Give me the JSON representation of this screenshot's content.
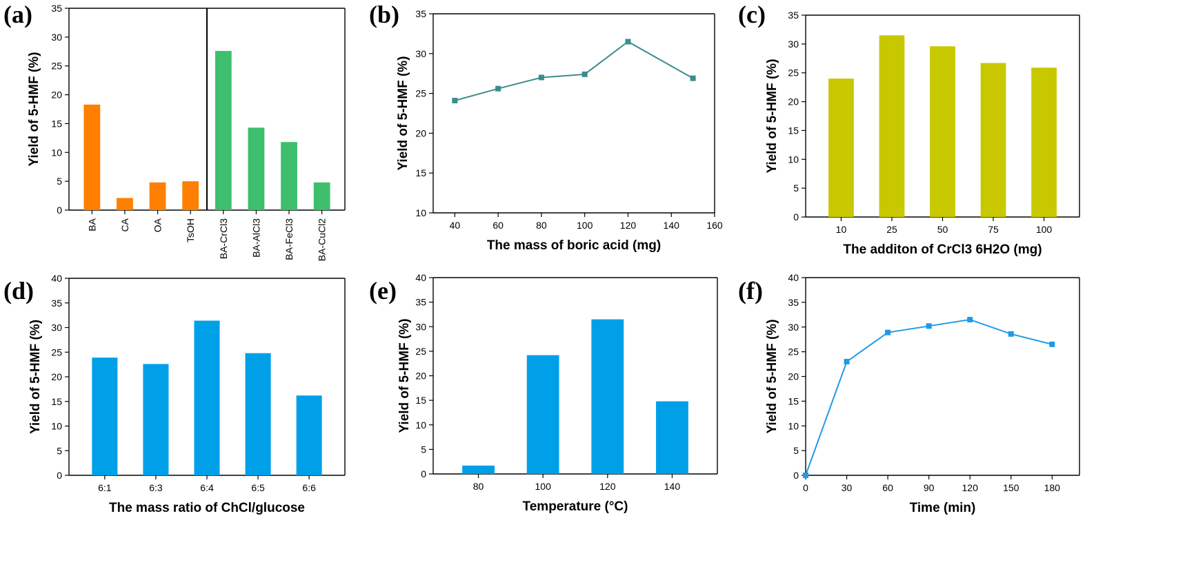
{
  "chart_data": [
    {
      "panel": "(a)",
      "type": "bar",
      "categories": [
        "BA",
        "CA",
        "OA",
        "TsOH",
        "BA-CrCl3",
        "BA-AlCl3",
        "BA-FeCl3",
        "BA-CuCl2"
      ],
      "values": [
        18.3,
        2.1,
        4.8,
        5.0,
        27.6,
        14.3,
        11.8,
        4.8
      ],
      "bar_colors": [
        "#ff7f00",
        "#ff7f00",
        "#ff7f00",
        "#ff7f00",
        "#3dbf6e",
        "#3dbf6e",
        "#3dbf6e",
        "#3dbf6e"
      ],
      "divider_after_category": "TsOH",
      "ylabel": "Yield of 5-HMF (%)",
      "xlabel": "",
      "ylim": [
        0,
        35
      ],
      "yticks": [
        0,
        5,
        10,
        15,
        20,
        25,
        30,
        35
      ],
      "grid": false
    },
    {
      "panel": "(b)",
      "type": "line",
      "x": [
        40,
        60,
        80,
        100,
        120,
        150
      ],
      "y": [
        24.1,
        25.6,
        27.0,
        27.4,
        31.5,
        26.9
      ],
      "color": "#3c8c8c",
      "marker": "square",
      "xlabel": "The mass of boric acid (mg)",
      "ylabel": "Yield of 5-HMF (%)",
      "xlim": [
        30,
        160
      ],
      "ylim": [
        10,
        35
      ],
      "xticks": [
        40,
        60,
        80,
        100,
        120,
        140,
        160
      ],
      "yticks": [
        10,
        15,
        20,
        25,
        30,
        35
      ],
      "grid": false
    },
    {
      "panel": "(c)",
      "type": "bar",
      "categories": [
        "10",
        "25",
        "50",
        "75",
        "100"
      ],
      "values": [
        24.0,
        31.5,
        29.6,
        26.7,
        25.9
      ],
      "color": "#c8c800",
      "xlabel": "The additon of CrCl3 6H2O (mg)",
      "ylabel": "Yield of 5-HMF (%)",
      "ylim": [
        0,
        35
      ],
      "yticks": [
        0,
        5,
        10,
        15,
        20,
        25,
        30,
        35
      ],
      "grid": false
    },
    {
      "panel": "(d)",
      "type": "bar",
      "categories": [
        "6:1",
        "6:3",
        "6:4",
        "6:5",
        "6:6"
      ],
      "values": [
        23.9,
        22.6,
        31.4,
        24.8,
        16.2
      ],
      "color": "#00a0e9",
      "xlabel": "The mass ratio of ChCl/glucose",
      "ylabel": "Yield of 5-HMF (%)",
      "ylim": [
        0,
        40
      ],
      "yticks": [
        0,
        5,
        10,
        15,
        20,
        25,
        30,
        35,
        40
      ],
      "grid": false
    },
    {
      "panel": "(e)",
      "type": "bar",
      "categories": [
        "80",
        "100",
        "120",
        "140"
      ],
      "values": [
        1.7,
        24.2,
        31.5,
        14.8
      ],
      "color": "#00a0e9",
      "xlabel": "Temperature (°C)",
      "ylabel": "Yield of 5-HMF (%)",
      "ylim": [
        0,
        40
      ],
      "yticks": [
        0,
        5,
        10,
        15,
        20,
        25,
        30,
        35,
        40
      ],
      "grid": false
    },
    {
      "panel": "(f)",
      "type": "line",
      "x": [
        0,
        30,
        60,
        90,
        120,
        150,
        180
      ],
      "y": [
        0,
        23.0,
        28.9,
        30.2,
        31.5,
        28.6,
        26.5
      ],
      "color": "#1e9be6",
      "marker": "square",
      "xlabel": "Time (min)",
      "ylabel": "Yield of 5-HMF (%)",
      "xlim": [
        0,
        200
      ],
      "ylim": [
        0,
        40
      ],
      "xticks": [
        0,
        30,
        60,
        90,
        120,
        150,
        180
      ],
      "yticks": [
        0,
        5,
        10,
        15,
        20,
        25,
        30,
        35,
        40
      ],
      "grid": false
    }
  ]
}
